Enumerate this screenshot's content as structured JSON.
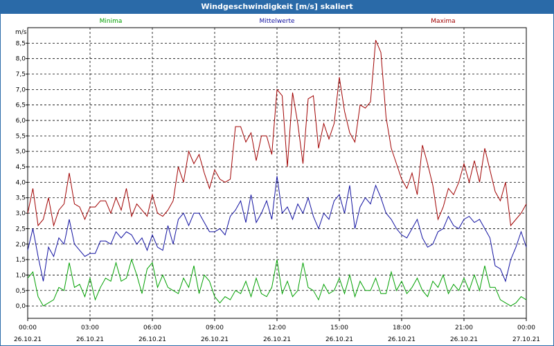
{
  "window": {
    "title": "Windgeschwindigkeit [m/s] skaliert"
  },
  "chart_data": {
    "type": "line",
    "title": "Windgeschwindigkeit [m/s] skaliert",
    "ylabel": "m/s",
    "ylim": [
      -0.4,
      9.0
    ],
    "y_ticks": [
      "0,0",
      "0,5",
      "1,0",
      "1,5",
      "2,0",
      "2,5",
      "3,0",
      "3,5",
      "4,0",
      "4,5",
      "5,0",
      "5,5",
      "6,0",
      "6,5",
      "7,0",
      "7,5",
      "8,0",
      "8,5"
    ],
    "y_tick_values": [
      0,
      0.5,
      1,
      1.5,
      2,
      2.5,
      3,
      3.5,
      4,
      4.5,
      5,
      5.5,
      6,
      6.5,
      7,
      7.5,
      8,
      8.5
    ],
    "xlim": [
      0,
      24
    ],
    "x_ticks": [
      {
        "time": "00:00",
        "date": "26.10.21",
        "hour": 0
      },
      {
        "time": "03:00",
        "date": "26.10.21",
        "hour": 3
      },
      {
        "time": "06:00",
        "date": "26.10.21",
        "hour": 6
      },
      {
        "time": "09:00",
        "date": "26.10.21",
        "hour": 9
      },
      {
        "time": "12:00",
        "date": "26.10.21",
        "hour": 12
      },
      {
        "time": "15:00",
        "date": "26.10.21",
        "hour": 15
      },
      {
        "time": "18:00",
        "date": "26.10.21",
        "hour": 18
      },
      {
        "time": "21:00",
        "date": "26.10.21",
        "hour": 21
      },
      {
        "time": "00:00",
        "date": "27.10.21",
        "hour": 24
      }
    ],
    "grid": true,
    "legend_position": "top",
    "series": [
      {
        "name": "Minima",
        "color": "#00a000",
        "x": [
          0,
          0.25,
          0.5,
          0.75,
          1,
          1.25,
          1.5,
          1.75,
          2,
          2.25,
          2.5,
          2.75,
          3,
          3.25,
          3.5,
          3.75,
          4,
          4.25,
          4.5,
          4.75,
          5,
          5.25,
          5.5,
          5.75,
          6,
          6.25,
          6.5,
          6.75,
          7,
          7.25,
          7.5,
          7.75,
          8,
          8.25,
          8.5,
          8.75,
          9,
          9.25,
          9.5,
          9.75,
          10,
          10.25,
          10.5,
          10.75,
          11,
          11.25,
          11.5,
          11.75,
          12,
          12.25,
          12.5,
          12.75,
          13,
          13.25,
          13.5,
          13.75,
          14,
          14.25,
          14.5,
          14.75,
          15,
          15.25,
          15.5,
          15.75,
          16,
          16.25,
          16.5,
          16.75,
          17,
          17.25,
          17.5,
          17.75,
          18,
          18.25,
          18.5,
          18.75,
          19,
          19.25,
          19.5,
          19.75,
          20,
          20.25,
          20.5,
          20.75,
          21,
          21.25,
          21.5,
          21.75,
          22,
          22.25,
          22.5,
          22.75,
          23,
          23.25,
          23.5,
          23.75,
          24
        ],
        "values": [
          0.9,
          1.1,
          0.3,
          0.0,
          0.1,
          0.2,
          0.6,
          0.5,
          1.4,
          0.6,
          0.7,
          0.3,
          0.9,
          0.2,
          0.6,
          0.9,
          0.8,
          1.4,
          0.8,
          0.9,
          1.5,
          1.0,
          0.4,
          1.2,
          1.4,
          0.6,
          1.0,
          0.6,
          0.5,
          0.4,
          0.9,
          0.6,
          1.3,
          0.4,
          1.0,
          0.8,
          0.3,
          0.1,
          0.3,
          0.2,
          0.5,
          0.4,
          0.8,
          0.3,
          0.9,
          0.4,
          0.3,
          0.6,
          1.5,
          0.4,
          0.8,
          0.3,
          0.5,
          1.4,
          0.6,
          0.5,
          0.2,
          0.7,
          0.4,
          0.5,
          0.9,
          0.4,
          1.0,
          0.3,
          0.8,
          0.5,
          0.5,
          0.9,
          0.4,
          0.4,
          1.1,
          0.5,
          0.8,
          0.4,
          0.6,
          0.9,
          0.5,
          0.3,
          0.8,
          0.6,
          1.0,
          0.4,
          0.7,
          0.5,
          0.9,
          0.5,
          1.0,
          0.5,
          1.3,
          0.6,
          0.6,
          0.2,
          0.1,
          0.0,
          0.1,
          0.3,
          0.2
        ]
      },
      {
        "name": "Mittelwerte",
        "color": "#1010a0",
        "x": [
          0,
          0.25,
          0.5,
          0.75,
          1,
          1.25,
          1.5,
          1.75,
          2,
          2.25,
          2.5,
          2.75,
          3,
          3.25,
          3.5,
          3.75,
          4,
          4.25,
          4.5,
          4.75,
          5,
          5.25,
          5.5,
          5.75,
          6,
          6.25,
          6.5,
          6.75,
          7,
          7.25,
          7.5,
          7.75,
          8,
          8.25,
          8.5,
          8.75,
          9,
          9.25,
          9.5,
          9.75,
          10,
          10.25,
          10.5,
          10.75,
          11,
          11.25,
          11.5,
          11.75,
          12,
          12.25,
          12.5,
          12.75,
          13,
          13.25,
          13.5,
          13.75,
          14,
          14.25,
          14.5,
          14.75,
          15,
          15.25,
          15.5,
          15.75,
          16,
          16.25,
          16.5,
          16.75,
          17,
          17.25,
          17.5,
          17.75,
          18,
          18.25,
          18.5,
          18.75,
          19,
          19.25,
          19.5,
          19.75,
          20,
          20.25,
          20.5,
          20.75,
          21,
          21.25,
          21.5,
          21.75,
          22,
          22.25,
          22.5,
          22.75,
          23,
          23.25,
          23.5,
          23.75,
          24
        ],
        "values": [
          1.8,
          2.5,
          1.6,
          0.8,
          1.9,
          1.6,
          2.2,
          2.0,
          2.8,
          2.0,
          1.8,
          1.6,
          1.7,
          1.7,
          2.1,
          2.1,
          2.0,
          2.4,
          2.2,
          2.4,
          2.3,
          2.0,
          2.2,
          1.8,
          2.3,
          1.9,
          1.8,
          2.6,
          2.0,
          2.8,
          3.0,
          2.6,
          3.0,
          3.0,
          2.7,
          2.4,
          2.4,
          2.5,
          2.3,
          2.9,
          3.1,
          3.4,
          2.7,
          3.6,
          2.7,
          3.0,
          3.4,
          2.8,
          4.2,
          3.0,
          3.2,
          2.8,
          3.3,
          3.0,
          3.5,
          2.9,
          2.5,
          3.0,
          2.8,
          3.4,
          3.6,
          3.0,
          3.9,
          2.5,
          3.2,
          3.5,
          3.3,
          3.9,
          3.5,
          3.0,
          2.8,
          2.5,
          2.3,
          2.2,
          2.5,
          2.8,
          2.2,
          1.9,
          2.0,
          2.4,
          2.5,
          2.9,
          2.6,
          2.5,
          2.8,
          2.9,
          2.7,
          2.8,
          2.5,
          2.2,
          1.3,
          1.2,
          0.8,
          1.5,
          1.9,
          2.4,
          1.9
        ]
      },
      {
        "name": "Maxima",
        "color": "#a00000",
        "x": [
          0,
          0.25,
          0.5,
          0.75,
          1,
          1.25,
          1.5,
          1.75,
          2,
          2.25,
          2.5,
          2.75,
          3,
          3.25,
          3.5,
          3.75,
          4,
          4.25,
          4.5,
          4.75,
          5,
          5.25,
          5.5,
          5.75,
          6,
          6.25,
          6.5,
          6.75,
          7,
          7.25,
          7.5,
          7.75,
          8,
          8.25,
          8.5,
          8.75,
          9,
          9.25,
          9.5,
          9.75,
          10,
          10.25,
          10.5,
          10.75,
          11,
          11.25,
          11.5,
          11.75,
          12,
          12.25,
          12.5,
          12.75,
          13,
          13.25,
          13.5,
          13.75,
          14,
          14.25,
          14.5,
          14.75,
          15,
          15.25,
          15.5,
          15.75,
          16,
          16.25,
          16.5,
          16.75,
          17,
          17.25,
          17.5,
          17.75,
          18,
          18.25,
          18.5,
          18.75,
          19,
          19.25,
          19.5,
          19.75,
          20,
          20.25,
          20.5,
          20.75,
          21,
          21.25,
          21.5,
          21.75,
          22,
          22.25,
          22.5,
          22.75,
          23,
          23.25,
          23.5,
          23.75,
          24
        ],
        "values": [
          3.0,
          3.8,
          2.6,
          2.8,
          3.5,
          2.6,
          3.1,
          3.3,
          4.3,
          3.3,
          3.2,
          2.8,
          3.2,
          3.2,
          3.4,
          3.4,
          3.0,
          3.5,
          3.1,
          3.8,
          2.9,
          3.3,
          3.1,
          2.9,
          3.6,
          3.0,
          2.9,
          3.1,
          3.4,
          4.5,
          4.0,
          5.0,
          4.6,
          4.9,
          4.3,
          3.8,
          4.4,
          4.1,
          4.0,
          4.1,
          5.8,
          5.8,
          5.3,
          5.6,
          4.7,
          5.5,
          5.5,
          4.9,
          7.0,
          6.8,
          4.5,
          6.9,
          5.9,
          4.6,
          6.7,
          6.8,
          5.1,
          5.9,
          5.4,
          5.9,
          7.4,
          6.3,
          5.6,
          5.3,
          6.5,
          6.4,
          6.6,
          8.6,
          8.2,
          6.1,
          5.1,
          4.6,
          4.1,
          3.8,
          4.3,
          3.6,
          5.2,
          4.6,
          3.9,
          2.8,
          3.2,
          3.8,
          3.6,
          4.0,
          4.6,
          4.0,
          4.7,
          4.0,
          5.1,
          4.4,
          3.7,
          3.4,
          4.0,
          2.6,
          2.8,
          3.0,
          3.3
        ]
      }
    ]
  }
}
